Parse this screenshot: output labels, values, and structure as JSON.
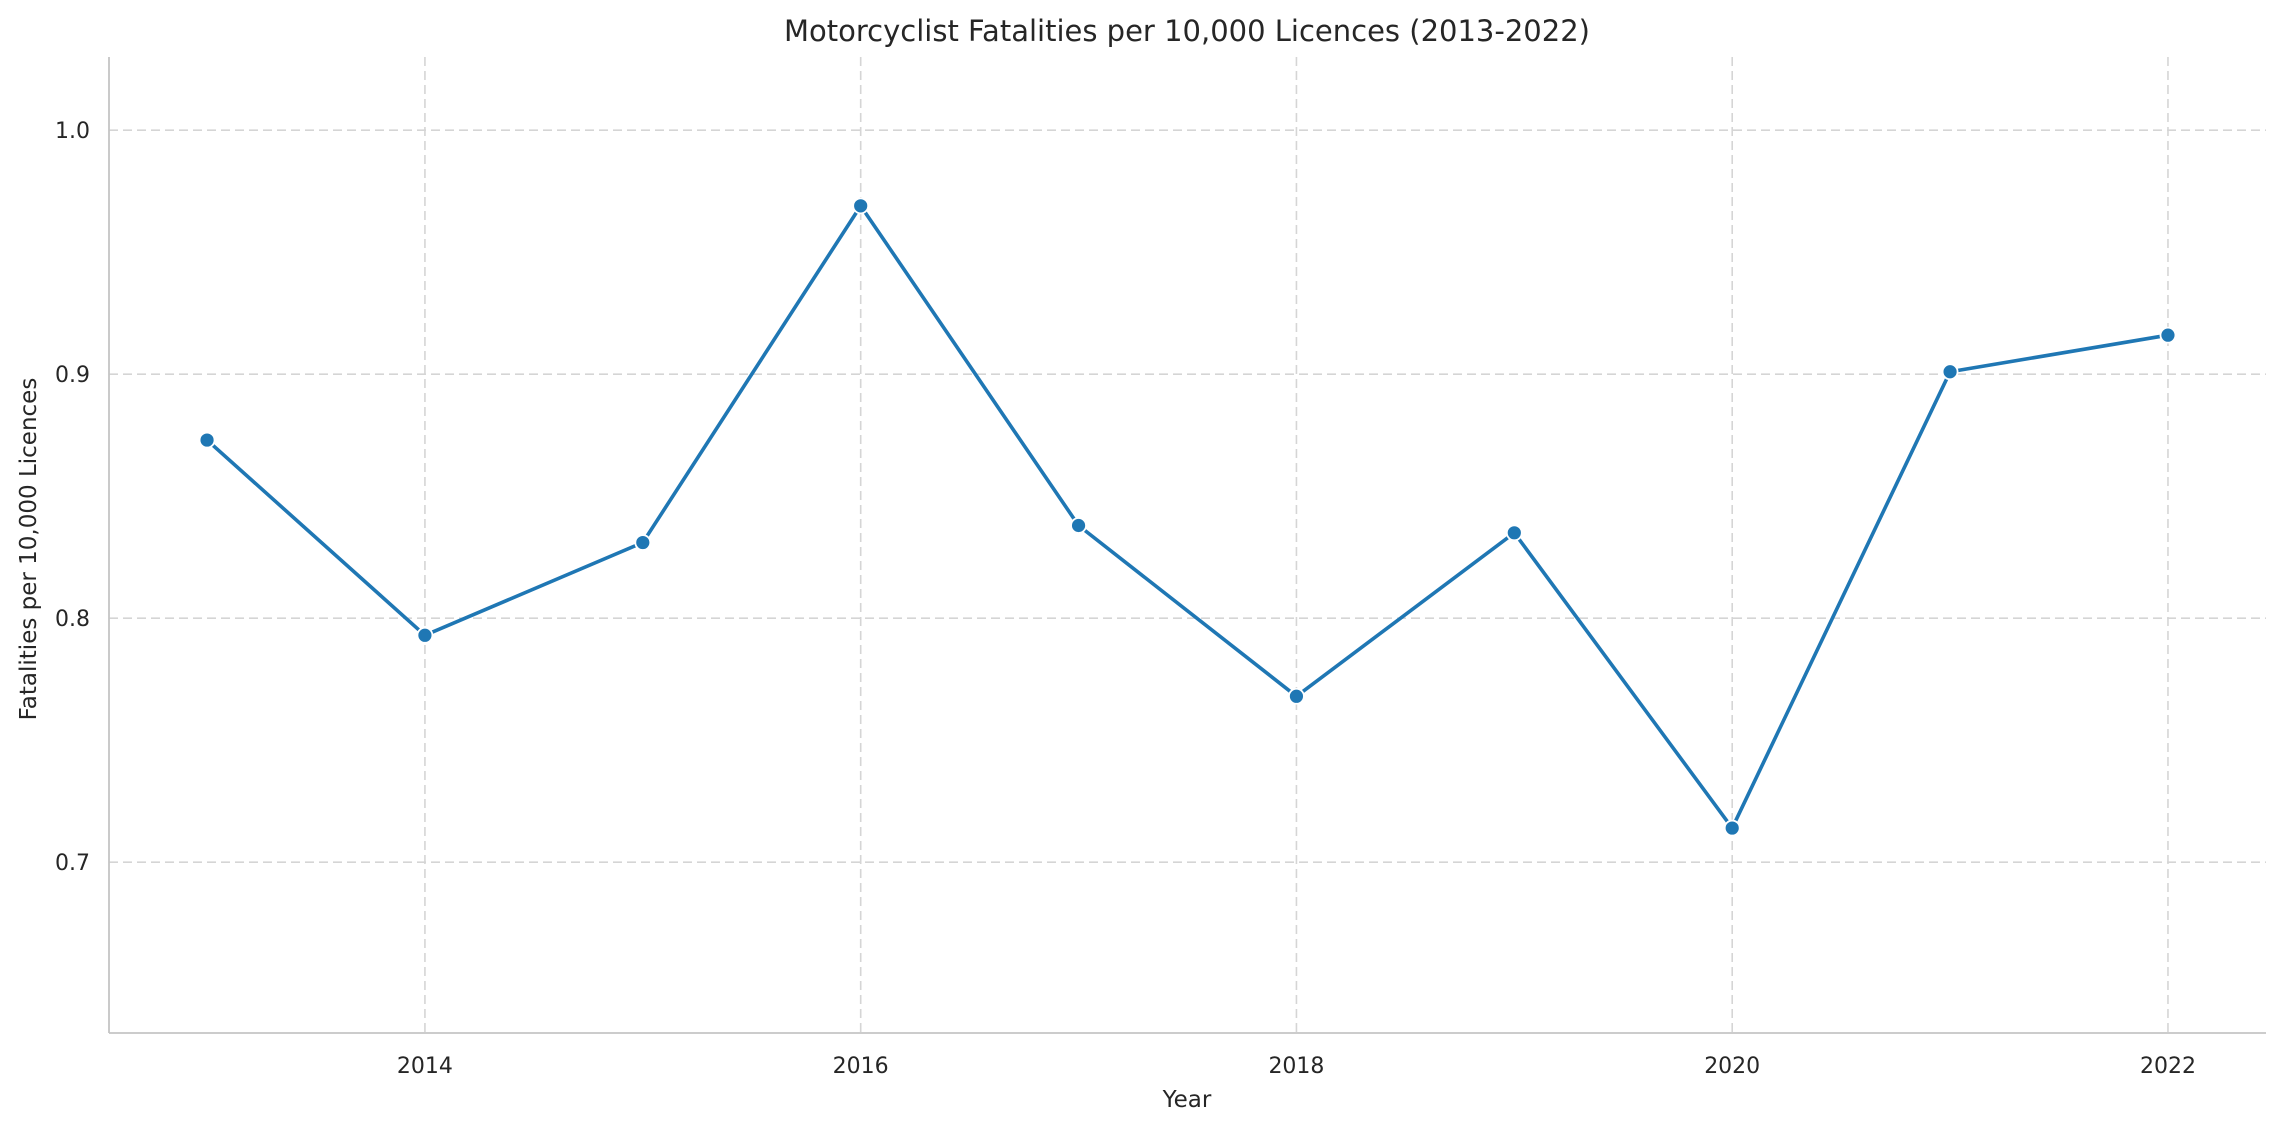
{
  "chart_data": {
    "type": "line",
    "title": "Motorcyclist Fatalities per 10,000 Licences (2013-2022)",
    "xlabel": "Year",
    "ylabel": "Fatalities per 10,000 Licences",
    "x": [
      2013,
      2014,
      2015,
      2016,
      2017,
      2018,
      2019,
      2020,
      2021,
      2022
    ],
    "series": [
      {
        "values": [
          0.873,
          0.793,
          0.831,
          0.969,
          0.838,
          0.768,
          0.835,
          0.714,
          0.901,
          0.916
        ],
        "color": "#1f77b4",
        "marker": "circle"
      }
    ],
    "xlim": [
      2012.55,
      2022.45
    ],
    "ylim": [
      0.63,
      1.03
    ],
    "x_ticks": [
      "2014",
      "2016",
      "2018",
      "2020",
      "2022"
    ],
    "y_ticks": [
      "0.7",
      "0.8",
      "0.9",
      "1.0"
    ],
    "grid": true,
    "spines": "left-bottom",
    "legend": "none"
  }
}
